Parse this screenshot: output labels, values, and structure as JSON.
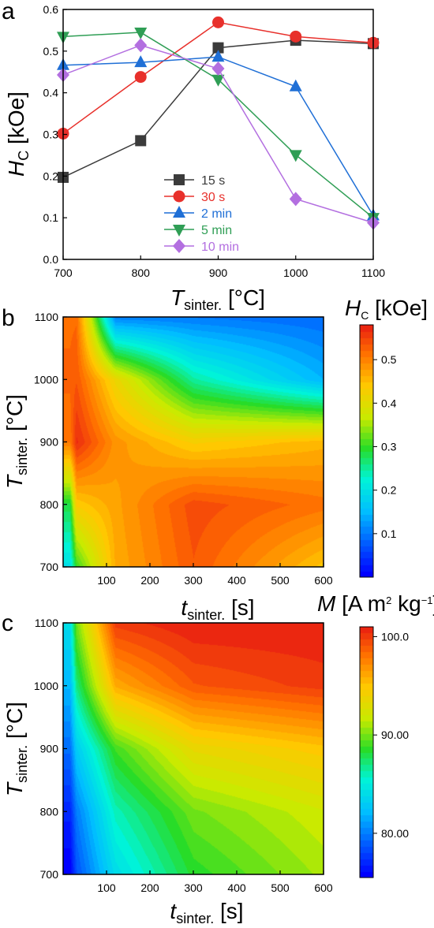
{
  "figure": {
    "panel_labels": [
      "a",
      "b",
      "c"
    ]
  },
  "chart_data": [
    {
      "type": "line",
      "panel": "a",
      "x": [
        700,
        800,
        900,
        1000,
        1100
      ],
      "xlabel": {
        "main": "T",
        "sub": "sinter.",
        "rest": " [°C]"
      },
      "ylabel": {
        "main": "H",
        "sub": "C",
        "rest": " [kOe]"
      },
      "xlim": [
        700,
        1100
      ],
      "ylim": [
        0.0,
        0.6
      ],
      "xticks": [
        "700",
        "800",
        "900",
        "1000",
        "1100"
      ],
      "yticks": [
        "0.0",
        "0.1",
        "0.2",
        "0.3",
        "0.4",
        "0.5",
        "0.6"
      ],
      "legend_position": "bottom-center",
      "series": [
        {
          "name": "15 s",
          "color": "#3b3b3b",
          "marker": "square",
          "values": [
            0.197,
            0.285,
            0.508,
            0.526,
            0.518
          ]
        },
        {
          "name": "30 s",
          "color": "#e8302b",
          "marker": "circle",
          "values": [
            0.302,
            0.438,
            0.569,
            0.535,
            0.52
          ]
        },
        {
          "name": "2 min",
          "color": "#1f6fd6",
          "marker": "triangle-up",
          "values": [
            0.466,
            0.473,
            0.486,
            0.415,
            0.105
          ]
        },
        {
          "name": "5 min",
          "color": "#2f9e55",
          "marker": "triangle-down",
          "values": [
            0.535,
            0.545,
            0.432,
            0.251,
            0.1
          ]
        },
        {
          "name": "10 min",
          "color": "#b36fe0",
          "marker": "diamond",
          "values": [
            0.443,
            0.514,
            0.458,
            0.145,
            0.088
          ]
        }
      ]
    },
    {
      "type": "heatmap",
      "panel": "b",
      "x": [
        15,
        30,
        120,
        300,
        600
      ],
      "y": [
        700,
        800,
        900,
        1000,
        1100
      ],
      "z": [
        [
          0.197,
          0.302,
          0.466,
          0.535,
          0.443
        ],
        [
          0.285,
          0.438,
          0.473,
          0.545,
          0.514
        ],
        [
          0.508,
          0.569,
          0.486,
          0.432,
          0.458
        ],
        [
          0.526,
          0.535,
          0.415,
          0.251,
          0.145
        ],
        [
          0.518,
          0.52,
          0.105,
          0.1,
          0.088
        ]
      ],
      "xlabel": {
        "main": "t",
        "sub": "sinter.",
        "rest": " [s]"
      },
      "ylabel": {
        "main": "T",
        "sub": "sinter.",
        "rest": " [°C]"
      },
      "xlim": [
        0,
        600
      ],
      "ylim": [
        700,
        1100
      ],
      "xticks": [
        "100",
        "200",
        "300",
        "400",
        "500",
        "600"
      ],
      "yticks": [
        "700",
        "800",
        "900",
        "1000",
        "1100"
      ],
      "colorbar": {
        "title_main": "H",
        "title_sub": "C",
        "title_rest": " [kOe]",
        "range": [
          0.0,
          0.58
        ],
        "ticks": [
          "0.1",
          "0.2",
          "0.3",
          "0.4",
          "0.5"
        ],
        "tick_values": [
          0.1,
          0.2,
          0.3,
          0.4,
          0.5
        ]
      }
    },
    {
      "type": "heatmap",
      "panel": "c",
      "x": [
        15,
        30,
        120,
        300,
        600
      ],
      "y": [
        700,
        800,
        900,
        1000,
        1100
      ],
      "z": [
        [
          75.5,
          78.5,
          84.0,
          88.5,
          91.0
        ],
        [
          77.0,
          80.0,
          86.0,
          90.0,
          92.0
        ],
        [
          79.5,
          83.0,
          89.0,
          93.5,
          95.0
        ],
        [
          82.0,
          87.0,
          96.0,
          99.0,
          100.0
        ],
        [
          84.0,
          90.0,
          100.0,
          101.0,
          101.0
        ]
      ],
      "xlabel": {
        "main": "t",
        "sub": "sinter.",
        "rest": " [s]"
      },
      "ylabel": {
        "main": "T",
        "sub": "sinter.",
        "rest": " [°C]"
      },
      "xlim": [
        0,
        600
      ],
      "ylim": [
        700,
        1100
      ],
      "xticks": [
        "100",
        "200",
        "300",
        "400",
        "500",
        "600"
      ],
      "yticks": [
        "700",
        "800",
        "900",
        "1000",
        "1100"
      ],
      "colorbar": {
        "title_main": "M",
        "title_rest": " [A m",
        "title_sup1": "2",
        "title_rest2": " kg",
        "title_sup2": "−1",
        "title_end": "]",
        "range": [
          75.5,
          101.0
        ],
        "ticks": [
          "80.00",
          "90.00",
          "100.0"
        ],
        "tick_values": [
          80.0,
          90.0,
          100.0
        ]
      }
    }
  ]
}
